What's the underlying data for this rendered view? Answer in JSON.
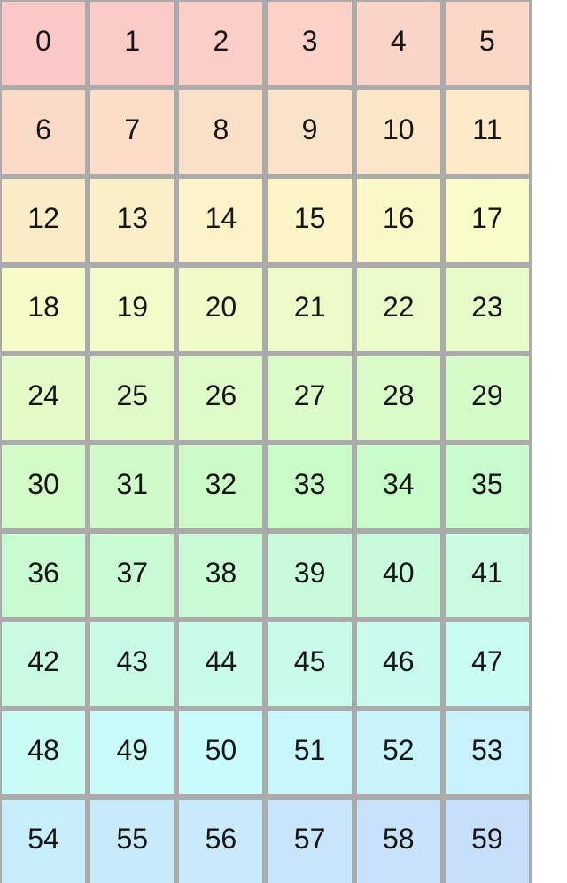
{
  "page": {
    "background": "#ffffff"
  },
  "grid": {
    "gap_color": "#ababab",
    "label_color": "#161616",
    "cells": [
      {
        "label": "0",
        "color": "#fbc8c8"
      },
      {
        "label": "1",
        "color": "#fbcbc8"
      },
      {
        "label": "2",
        "color": "#fbcec8"
      },
      {
        "label": "3",
        "color": "#fbd1c8"
      },
      {
        "label": "4",
        "color": "#fbd4c8"
      },
      {
        "label": "5",
        "color": "#fbd7c8"
      },
      {
        "label": "6",
        "color": "#fbdac8"
      },
      {
        "label": "7",
        "color": "#fbddc8"
      },
      {
        "label": "8",
        "color": "#fbe0c8"
      },
      {
        "label": "9",
        "color": "#fbe3c8"
      },
      {
        "label": "10",
        "color": "#fbe6c8"
      },
      {
        "label": "11",
        "color": "#fbe9c8"
      },
      {
        "label": "12",
        "color": "#fbecc8"
      },
      {
        "label": "13",
        "color": "#fbefc8"
      },
      {
        "label": "14",
        "color": "#fbf2c8"
      },
      {
        "label": "15",
        "color": "#fbf5c8"
      },
      {
        "label": "16",
        "color": "#fbf8c8"
      },
      {
        "label": "17",
        "color": "#f9fbc8"
      },
      {
        "label": "18",
        "color": "#f6fbc8"
      },
      {
        "label": "19",
        "color": "#f3fbc8"
      },
      {
        "label": "20",
        "color": "#f0fbc8"
      },
      {
        "label": "21",
        "color": "#edfbc8"
      },
      {
        "label": "22",
        "color": "#eafbc8"
      },
      {
        "label": "23",
        "color": "#e7fbc8"
      },
      {
        "label": "24",
        "color": "#e4fbc8"
      },
      {
        "label": "25",
        "color": "#e1fbc8"
      },
      {
        "label": "26",
        "color": "#defbc8"
      },
      {
        "label": "27",
        "color": "#dbfbc8"
      },
      {
        "label": "28",
        "color": "#d8fbc8"
      },
      {
        "label": "29",
        "color": "#d5fbc8"
      },
      {
        "label": "30",
        "color": "#d2fbc8"
      },
      {
        "label": "31",
        "color": "#cffbc8"
      },
      {
        "label": "32",
        "color": "#ccfbc8"
      },
      {
        "label": "33",
        "color": "#c9fbc8"
      },
      {
        "label": "34",
        "color": "#c8fbca"
      },
      {
        "label": "35",
        "color": "#c8fbcd"
      },
      {
        "label": "36",
        "color": "#c8fbd0"
      },
      {
        "label": "37",
        "color": "#c8fbd3"
      },
      {
        "label": "38",
        "color": "#c8fbd6"
      },
      {
        "label": "39",
        "color": "#c8fbd9"
      },
      {
        "label": "40",
        "color": "#c8fbdc"
      },
      {
        "label": "41",
        "color": "#c8fbdf"
      },
      {
        "label": "42",
        "color": "#c8fbe2"
      },
      {
        "label": "43",
        "color": "#c8fbe5"
      },
      {
        "label": "44",
        "color": "#c8fbe8"
      },
      {
        "label": "45",
        "color": "#c8fbeb"
      },
      {
        "label": "46",
        "color": "#c8fbee"
      },
      {
        "label": "47",
        "color": "#c8fbf1"
      },
      {
        "label": "48",
        "color": "#c8fbf4"
      },
      {
        "label": "49",
        "color": "#c8fbf7"
      },
      {
        "label": "50",
        "color": "#c8fbfb"
      },
      {
        "label": "51",
        "color": "#c8f7fb"
      },
      {
        "label": "52",
        "color": "#c8f4fb"
      },
      {
        "label": "53",
        "color": "#c8f1fb"
      },
      {
        "label": "54",
        "color": "#c8eefb"
      },
      {
        "label": "55",
        "color": "#c8ebfb"
      },
      {
        "label": "56",
        "color": "#c8e8fb"
      },
      {
        "label": "57",
        "color": "#c8e5fb"
      },
      {
        "label": "58",
        "color": "#c8e2fb"
      },
      {
        "label": "59",
        "color": "#c8dffb"
      }
    ]
  }
}
